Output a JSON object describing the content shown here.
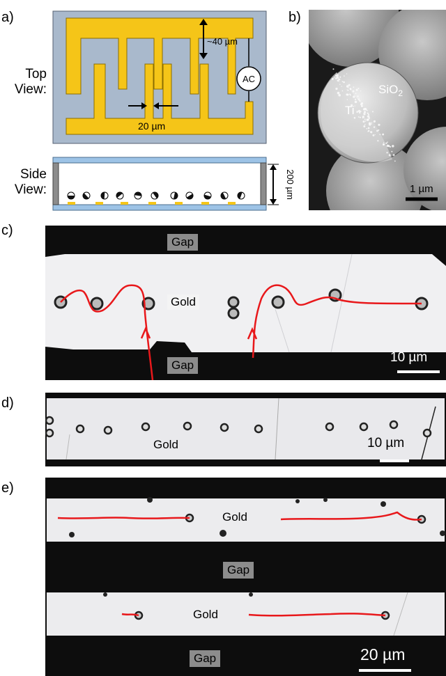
{
  "panel_a": {
    "label": "a)",
    "top_view_label_1": "Top",
    "top_view_label_2": "View:",
    "side_view_label_1": "Side",
    "side_view_label_2": "View:",
    "gap_spacing": "~40 µm",
    "finger_width": "20 µm",
    "source": "AC",
    "cell_height": "200 µm"
  },
  "panel_b": {
    "label": "b)",
    "ti": "Ti",
    "sio2": "SiO",
    "sio2_sub": "2",
    "scale": "1 µm"
  },
  "panel_c": {
    "label": "c)",
    "gap_top": "Gap",
    "gold": "Gold",
    "gap_bottom": "Gap",
    "scale": "10 µm"
  },
  "panel_d": {
    "label": "d)",
    "gold": "Gold",
    "scale": "10 µm"
  },
  "panel_e": {
    "label": "e)",
    "gold_1": "Gold",
    "gap_1": "Gap",
    "gold_2": "Gold",
    "gap_2": "Gap",
    "scale": "20 µm"
  },
  "colors": {
    "electrode": "#f5c518",
    "substrate": "#a9b9cc",
    "track": "#e8181b",
    "gap": "#0d0d0d"
  }
}
